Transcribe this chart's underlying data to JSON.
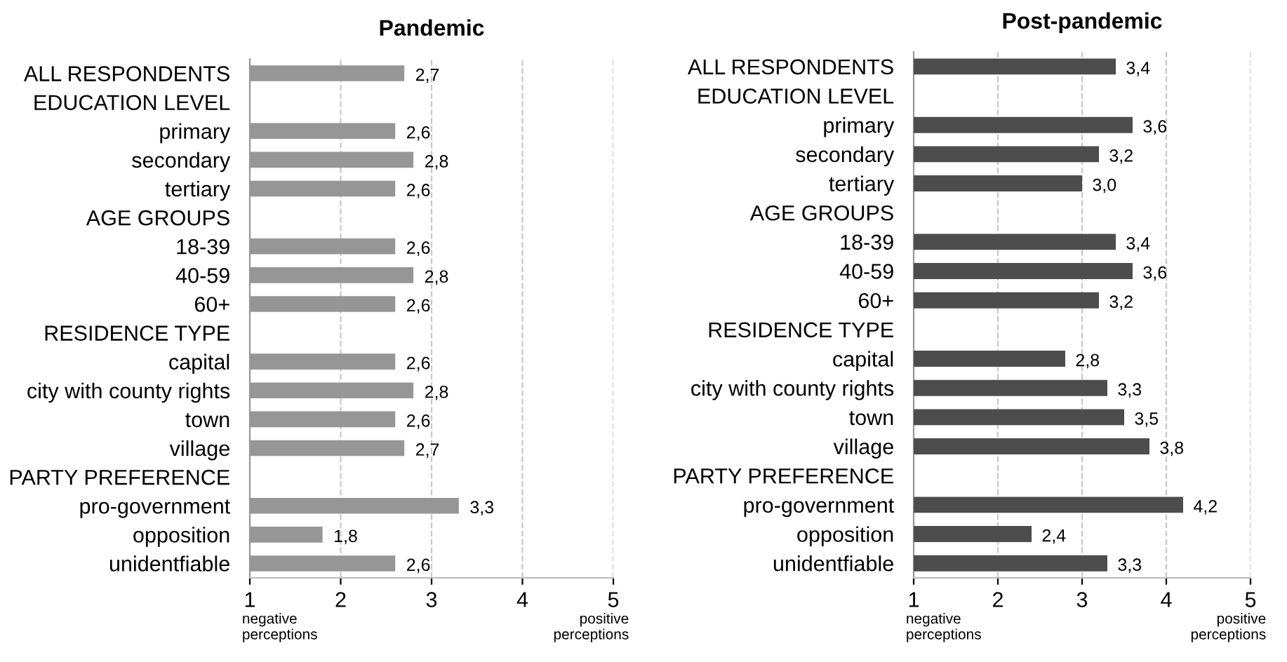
{
  "chart_data": [
    {
      "type": "bar",
      "orientation": "horizontal",
      "title": "Pandemic",
      "categories": [
        "ALL RESPONDENTS",
        "EDUCATION LEVEL",
        "primary",
        "secondary",
        "tertiary",
        "AGE GROUPS",
        "18-39",
        "40-59",
        "60+",
        "RESIDENCE TYPE",
        "capital",
        "city with county rights",
        "town",
        "village",
        "PARTY PREFERENCE",
        "pro-government",
        "opposition",
        "unidentfiable"
      ],
      "values": [
        2.7,
        null,
        2.6,
        2.8,
        2.6,
        null,
        2.6,
        2.8,
        2.6,
        null,
        2.6,
        2.8,
        2.6,
        2.7,
        null,
        3.3,
        1.8,
        2.6
      ],
      "value_labels": [
        "2,7",
        null,
        "2,6",
        "2,8",
        "2,6",
        null,
        "2,6",
        "2,8",
        "2,6",
        null,
        "2,6",
        "2,8",
        "2,6",
        "2,7",
        null,
        "3,3",
        "1,8",
        "2,6"
      ],
      "color": "#969696",
      "xlim": [
        1,
        5
      ],
      "xticks": [
        1,
        2,
        3,
        4,
        5
      ],
      "grid": "x",
      "line_style": "dashed",
      "annotations": [
        "negative perceptions",
        "positive perceptions"
      ]
    },
    {
      "type": "bar",
      "orientation": "horizontal",
      "title": "Post-pandemic",
      "categories": [
        "ALL RESPONDENTS",
        "EDUCATION LEVEL",
        "primary",
        "secondary",
        "tertiary",
        "AGE GROUPS",
        "18-39",
        "40-59",
        "60+",
        "RESIDENCE TYPE",
        "capital",
        "city with county rights",
        "town",
        "village",
        "PARTY PREFERENCE",
        "pro-government",
        "opposition",
        "unidentfiable"
      ],
      "values": [
        3.4,
        null,
        3.6,
        3.2,
        3.0,
        null,
        3.4,
        3.6,
        3.2,
        null,
        2.8,
        3.3,
        3.5,
        3.8,
        null,
        4.2,
        2.4,
        3.3
      ],
      "value_labels": [
        "3,4",
        null,
        "3,6",
        "3,2",
        "3,0",
        null,
        "3,4",
        "3,6",
        "3,2",
        null,
        "2,8",
        "3,3",
        "3,5",
        "3,8",
        null,
        "4,2",
        "2,4",
        "3,3"
      ],
      "color": "#4d4d4d",
      "xlim": [
        1,
        5
      ],
      "xticks": [
        1,
        2,
        3,
        4,
        5
      ],
      "grid": "x",
      "line_style": "dashed",
      "annotations": [
        "negative perceptions",
        "positive perceptions"
      ]
    }
  ]
}
